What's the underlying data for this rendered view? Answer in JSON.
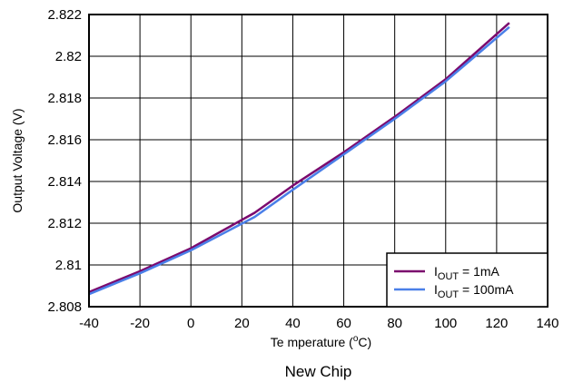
{
  "chart_data": {
    "type": "line",
    "caption": "New Chip",
    "xlabel": "Temperature (°C)",
    "xlabel_parts": {
      "pre": "Te mperature (",
      "sup": "o",
      "post": "C)"
    },
    "ylabel": "Output Voltage (V)",
    "xlim": [
      -40,
      140
    ],
    "ylim": [
      2.808,
      2.822
    ],
    "xticks": [
      -40,
      -20,
      0,
      20,
      40,
      60,
      80,
      100,
      120,
      140
    ],
    "xtick_labels": [
      "-40",
      "-20",
      "0",
      "20",
      "40",
      "60",
      "80",
      "100",
      "120",
      "140"
    ],
    "yticks": [
      2.808,
      2.81,
      2.812,
      2.814,
      2.816,
      2.818,
      2.82,
      2.822
    ],
    "ytick_labels": [
      "2.808",
      "2.81",
      "2.812",
      "2.814",
      "2.816",
      "2.818",
      "2.82",
      "2.822"
    ],
    "grid": true,
    "legend_position": "bottom-right",
    "series": [
      {
        "name": "IOUT = 1mA",
        "label_main": "I",
        "label_sub": "OUT",
        "label_rest": " = 1mA",
        "color": "#7B0A6E",
        "x": [
          -40,
          -20,
          0,
          25,
          40,
          60,
          80,
          100,
          125
        ],
        "y": [
          2.8087,
          2.8097,
          2.8108,
          2.8125,
          2.8138,
          2.8154,
          2.8171,
          2.8189,
          2.8216
        ]
      },
      {
        "name": "IOUT = 100mA",
        "label_main": "I",
        "label_sub": "OUT",
        "label_rest": " = 100mA",
        "color": "#4A7FE8",
        "x": [
          -40,
          -20,
          0,
          25,
          40,
          60,
          80,
          100,
          125
        ],
        "y": [
          2.8086,
          2.8096,
          2.8107,
          2.8123,
          2.8136,
          2.8153,
          2.817,
          2.8188,
          2.8214
        ]
      }
    ]
  }
}
